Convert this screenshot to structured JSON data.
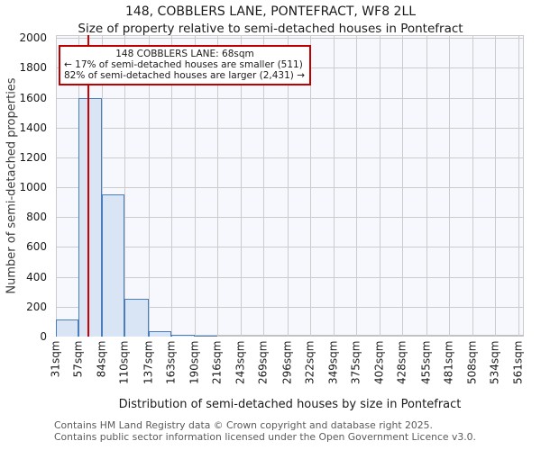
{
  "title": "148, COBBLERS LANE, PONTEFRACT, WF8 2LL",
  "subtitle": "Size of property relative to semi-detached houses in Pontefract",
  "annotation": {
    "line1": "148 COBBLERS LANE: 68sqm",
    "line2": "← 17% of semi-detached houses are smaller (511)",
    "line3": "82% of semi-detached houses are larger (2,431) →"
  },
  "footer": {
    "line1": "Contains HM Land Registry data © Crown copyright and database right 2025.",
    "line2": "Contains public sector information licensed under the Open Government Licence v3.0."
  },
  "chart_data": {
    "type": "bar",
    "title": "148, COBBLERS LANE, PONTEFRACT, WF8 2LL",
    "subtitle": "Size of property relative to semi-detached houses in Pontefract",
    "xlabel": "Distribution of semi-detached houses by size in Pontefract",
    "ylabel": "Number of semi-detached properties",
    "bin_edges_sqm": [
      31,
      57,
      84,
      110,
      137,
      163,
      190,
      216,
      243,
      269,
      296,
      322,
      349,
      375,
      402,
      428,
      455,
      481,
      508,
      534,
      561
    ],
    "x_tick_labels": [
      "31sqm",
      "57sqm",
      "84sqm",
      "110sqm",
      "137sqm",
      "163sqm",
      "190sqm",
      "216sqm",
      "243sqm",
      "269sqm",
      "296sqm",
      "322sqm",
      "349sqm",
      "375sqm",
      "402sqm",
      "428sqm",
      "455sqm",
      "481sqm",
      "508sqm",
      "534sqm",
      "561sqm"
    ],
    "values": [
      115,
      1600,
      950,
      255,
      35,
      15,
      8,
      0,
      0,
      0,
      0,
      0,
      0,
      0,
      0,
      0,
      0,
      0,
      0,
      0
    ],
    "y_ticks": [
      0,
      200,
      400,
      600,
      800,
      1000,
      1200,
      1400,
      1600,
      1800,
      2000
    ],
    "xlim": [
      31,
      567
    ],
    "ylim": [
      0,
      2020
    ],
    "grid": true,
    "legend": "none",
    "marker_sqm": 68,
    "marker_label": "148 COBBLERS LANE: 68sqm",
    "pct_smaller": 17,
    "count_smaller": 511,
    "pct_larger": 82,
    "count_larger": 2431,
    "colors": {
      "bar_fill": "#d9e4f4",
      "bar_border": "#4a7ebb",
      "marker_line": "#cc0000",
      "annotation_border": "#c00000",
      "plot_background": "#f6f8fd",
      "gridline": "#cccccc"
    }
  }
}
